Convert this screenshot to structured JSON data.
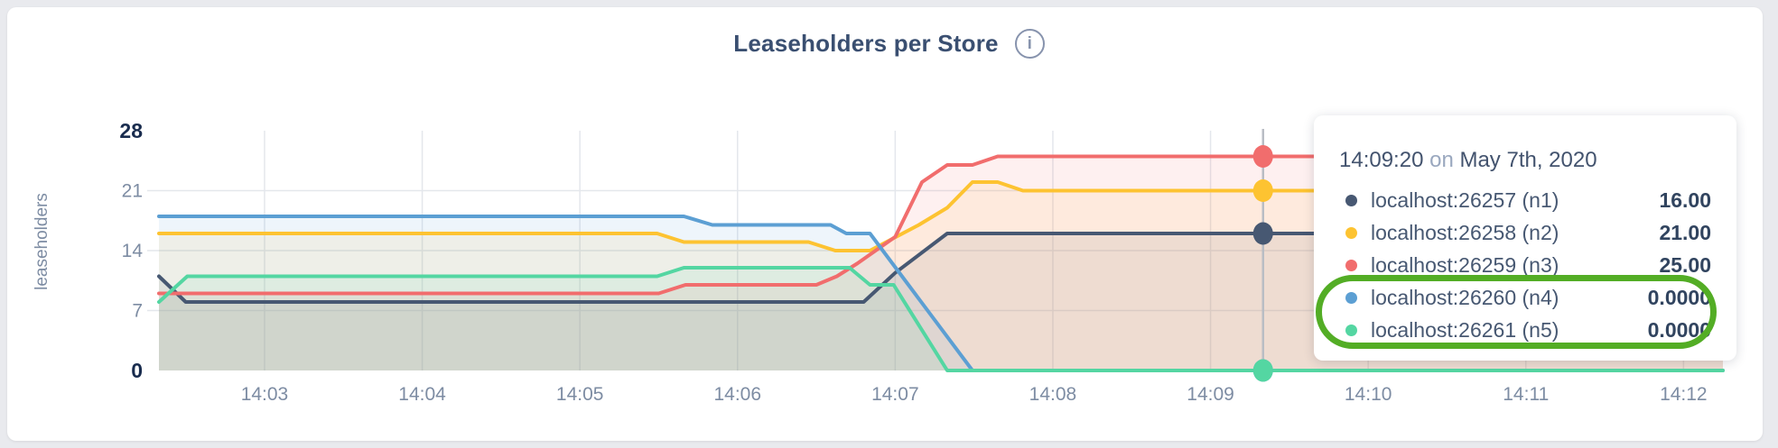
{
  "header": {
    "title": "Leaseholders per Store"
  },
  "chart_data": {
    "type": "area",
    "title": "Leaseholders per Store",
    "ylabel": "leaseholders",
    "x_axis": "time of day on May 7th, 2020",
    "x_range": [
      2.33,
      12.25
    ],
    "y_range": [
      0,
      28
    ],
    "grid": true,
    "x_ticks": [
      {
        "t": 3,
        "label": "14:03"
      },
      {
        "t": 4,
        "label": "14:04"
      },
      {
        "t": 5,
        "label": "14:05"
      },
      {
        "t": 6,
        "label": "14:06"
      },
      {
        "t": 7,
        "label": "14:07"
      },
      {
        "t": 8,
        "label": "14:08"
      },
      {
        "t": 9,
        "label": "14:09"
      },
      {
        "t": 10,
        "label": "14:10"
      },
      {
        "t": 11,
        "label": "14:11"
      },
      {
        "t": 12,
        "label": "14:12"
      }
    ],
    "y_ticks": [
      {
        "v": 0,
        "label": "0",
        "bold": true
      },
      {
        "v": 7,
        "label": "7",
        "bold": false
      },
      {
        "v": 14,
        "label": "14",
        "bold": false
      },
      {
        "v": 21,
        "label": "21",
        "bold": false
      },
      {
        "v": 28,
        "label": "28",
        "bold": true
      }
    ],
    "series": [
      {
        "name": "localhost:26257 (n1)",
        "color": "#475872",
        "points": [
          [
            2.33,
            11
          ],
          [
            2.5,
            8
          ],
          [
            6.8,
            8
          ],
          [
            7.0,
            11.4
          ],
          [
            7.33,
            16
          ],
          [
            12.25,
            16
          ]
        ]
      },
      {
        "name": "localhost:26258 (n2)",
        "color": "#fdc331",
        "points": [
          [
            2.33,
            16
          ],
          [
            5.49,
            16
          ],
          [
            5.66,
            15
          ],
          [
            6.45,
            15
          ],
          [
            6.62,
            14
          ],
          [
            6.84,
            14
          ],
          [
            7.15,
            17
          ],
          [
            7.33,
            19
          ],
          [
            7.49,
            22
          ],
          [
            7.65,
            22
          ],
          [
            7.81,
            21
          ],
          [
            12.25,
            21
          ]
        ]
      },
      {
        "name": "localhost:26259 (n3)",
        "color": "#f16d6d",
        "points": [
          [
            2.33,
            9
          ],
          [
            5.5,
            9
          ],
          [
            5.67,
            10
          ],
          [
            6.5,
            10
          ],
          [
            6.63,
            11
          ],
          [
            6.76,
            12.5
          ],
          [
            7.0,
            15.6
          ],
          [
            7.17,
            22
          ],
          [
            7.33,
            24
          ],
          [
            7.49,
            24
          ],
          [
            7.65,
            25
          ],
          [
            12.25,
            25
          ]
        ]
      },
      {
        "name": "localhost:26260 (n4)",
        "color": "#5c9fd3",
        "points": [
          [
            2.33,
            18
          ],
          [
            5.66,
            18
          ],
          [
            5.84,
            17
          ],
          [
            6.59,
            17
          ],
          [
            6.69,
            16
          ],
          [
            6.84,
            16
          ],
          [
            7.49,
            0
          ],
          [
            12.25,
            0
          ]
        ]
      },
      {
        "name": "localhost:26261 (n5)",
        "color": "#54d6a2",
        "points": [
          [
            2.33,
            8
          ],
          [
            2.51,
            11
          ],
          [
            5.49,
            11
          ],
          [
            5.66,
            12
          ],
          [
            6.71,
            12
          ],
          [
            6.84,
            10
          ],
          [
            6.99,
            10
          ],
          [
            7.33,
            0
          ],
          [
            12.25,
            0
          ]
        ]
      }
    ],
    "hover": {
      "t": 9.3333,
      "time_label": "14:09:20",
      "values": [
        16,
        21,
        25,
        0,
        0
      ]
    },
    "legend_position": "tooltip"
  },
  "tooltip": {
    "time": "14:09:20",
    "preposition": "on",
    "date": "May 7th, 2020",
    "rows": [
      {
        "label": "localhost:26257 (n1)",
        "value": "16.00",
        "color": "#475872"
      },
      {
        "label": "localhost:26258 (n2)",
        "value": "21.00",
        "color": "#fdc331"
      },
      {
        "label": "localhost:26259 (n3)",
        "value": "25.00",
        "color": "#f16d6d"
      },
      {
        "label": "localhost:26260 (n4)",
        "value": "0.0000",
        "color": "#5c9fd3"
      },
      {
        "label": "localhost:26261 (n5)",
        "value": "0.0000",
        "color": "#54d6a2"
      }
    ],
    "highlight": {
      "row_indexes": [
        3,
        4
      ],
      "color": "#53ad25"
    }
  },
  "colors": {
    "page_bg": "#e9eaee",
    "card_bg": "#ffffff",
    "grid": "#e4e7ec",
    "hover_line": "#b9bdc4",
    "tick_text": "#7d8ca3",
    "tick_text_bold": "#192c4e",
    "title_text": "#3a4f71"
  }
}
